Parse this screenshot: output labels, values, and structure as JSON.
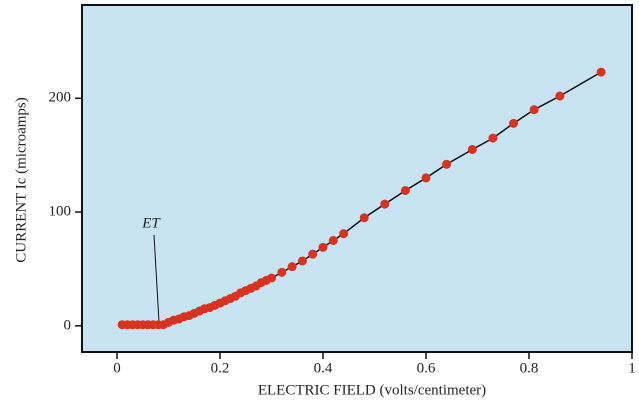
{
  "chart_data": {
    "type": "scatter",
    "x_label": "ELECTRIC FIELD (volts/centimeter)",
    "y_label": "CURRENT Ic (microamps)",
    "annotation": "ET",
    "x": [
      0.01,
      0.02,
      0.03,
      0.04,
      0.05,
      0.06,
      0.07,
      0.08,
      0.09,
      0.1,
      0.11,
      0.12,
      0.13,
      0.14,
      0.15,
      0.16,
      0.17,
      0.18,
      0.19,
      0.2,
      0.21,
      0.22,
      0.23,
      0.24,
      0.25,
      0.26,
      0.27,
      0.28,
      0.29,
      0.3,
      0.32,
      0.34,
      0.36,
      0.38,
      0.4,
      0.42,
      0.44,
      0.48,
      0.52,
      0.56,
      0.6,
      0.64,
      0.69,
      0.73,
      0.77,
      0.81,
      0.86,
      0.94
    ],
    "values": [
      1,
      1,
      1,
      1,
      1,
      1,
      1,
      1,
      1,
      3,
      5,
      6,
      8,
      9,
      11,
      13,
      15,
      16,
      18,
      20,
      22,
      24,
      26,
      29,
      31,
      33,
      35,
      38,
      40,
      42,
      47,
      52,
      57,
      63,
      69,
      75,
      81,
      95,
      107,
      119,
      130,
      142,
      155,
      165,
      178,
      190,
      202,
      223
    ],
    "color": "#d9321e",
    "line_color": "#111",
    "xlim": [
      -0.068,
      1.0
    ],
    "ylim": [
      -23,
      282
    ],
    "xticks": [
      0,
      0.2,
      0.4,
      0.6,
      0.8,
      1
    ],
    "yticks": [
      0,
      100,
      200
    ],
    "background": "#c8e4f3"
  }
}
